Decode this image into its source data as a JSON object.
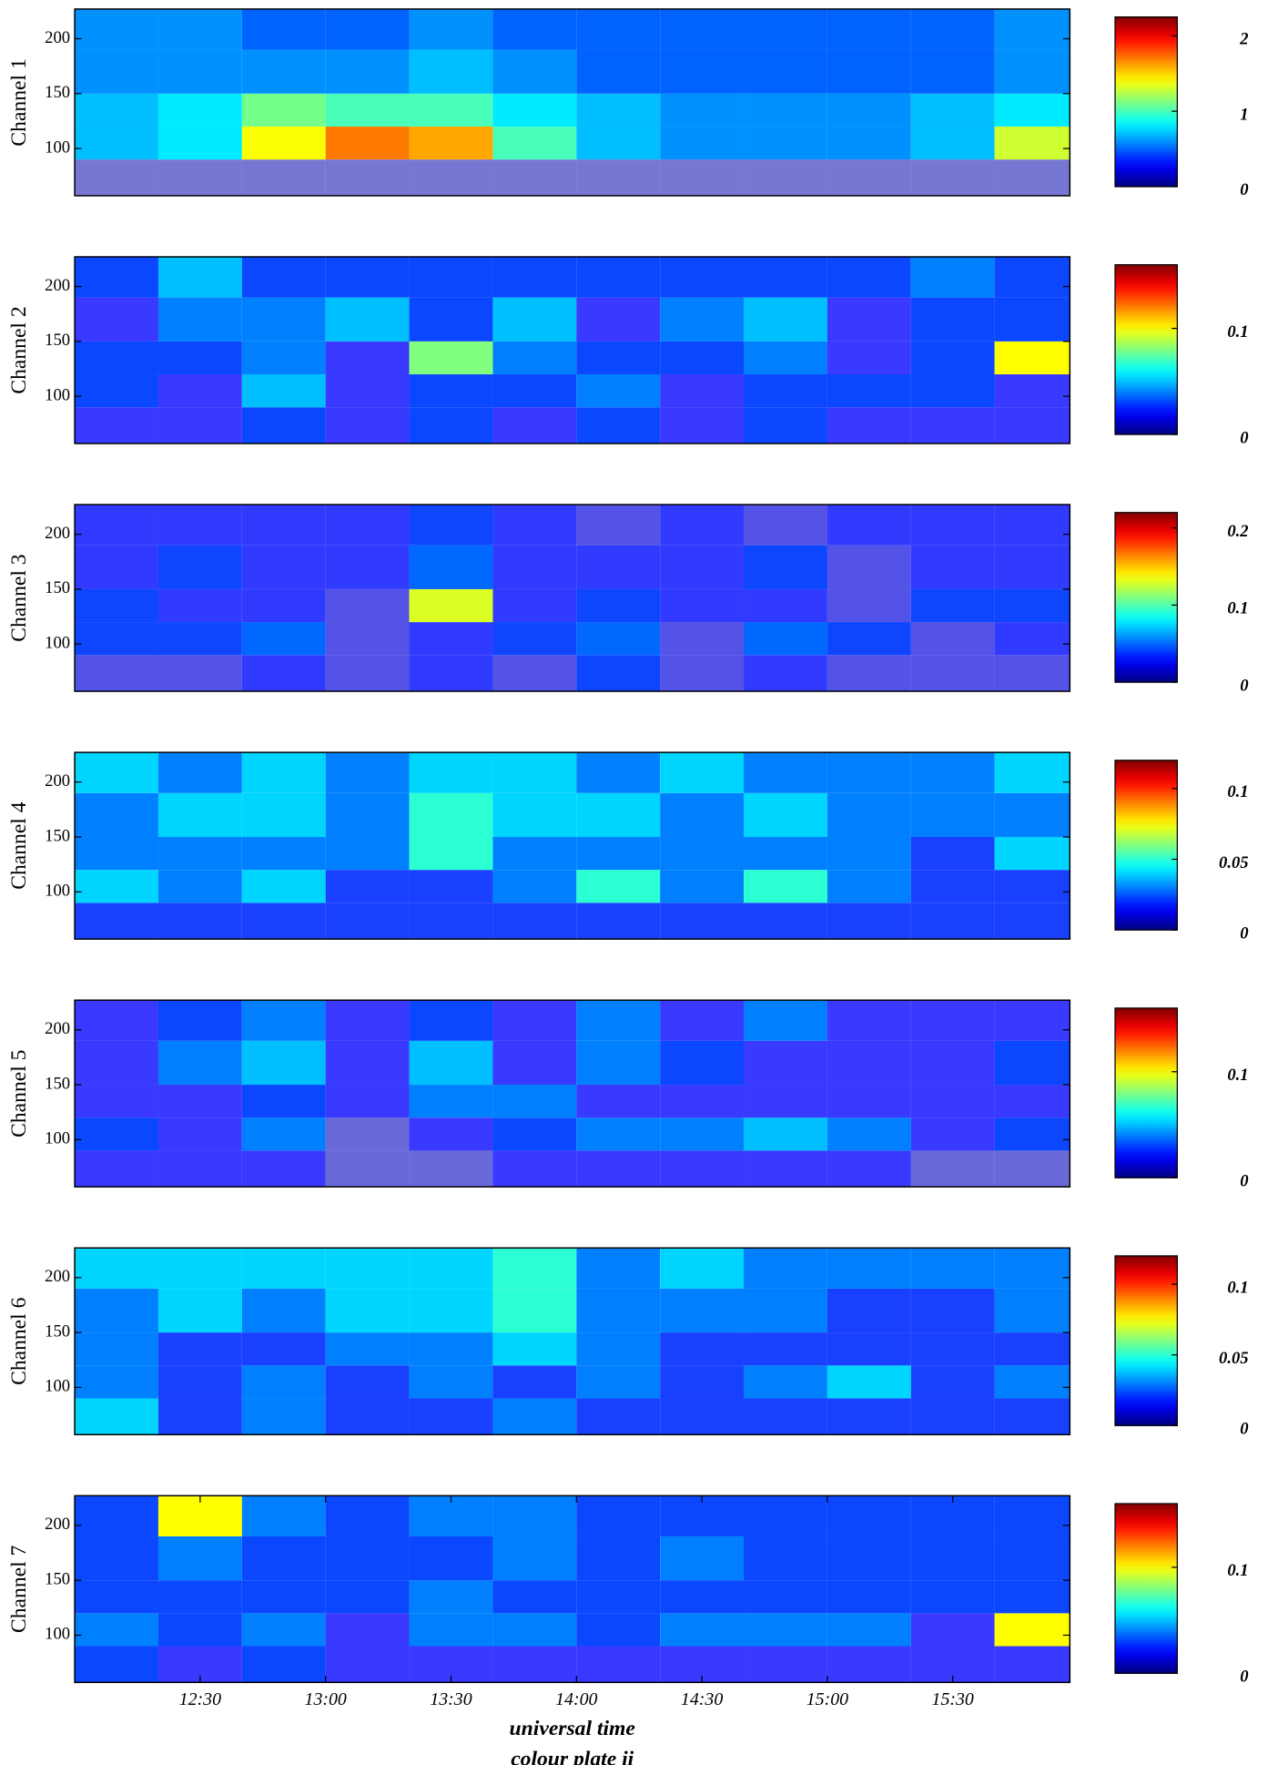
{
  "chart_data": [
    {
      "type": "heatmap",
      "ylabel": "Channel 1",
      "xlim": [
        720,
        958
      ],
      "ylim": [
        57,
        227
      ],
      "yticks": [
        100,
        150,
        200
      ],
      "xbins": [
        720,
        740,
        760,
        780,
        800,
        820,
        840,
        860,
        880,
        900,
        920,
        940,
        958
      ],
      "ybins": [
        57,
        90,
        120,
        150,
        190,
        227
      ],
      "z": [
        [
          0.1,
          0.1,
          0.1,
          0.1,
          0.1,
          0.1,
          0.1,
          0.1,
          0.1,
          0.1,
          0.1,
          0.1
        ],
        [
          0.7,
          0.8,
          1.4,
          1.7,
          1.6,
          1.0,
          0.7,
          0.6,
          0.6,
          0.6,
          0.7,
          1.3
        ],
        [
          0.7,
          0.8,
          1.1,
          1.0,
          1.0,
          0.8,
          0.7,
          0.6,
          0.6,
          0.6,
          0.7,
          0.8
        ],
        [
          0.6,
          0.6,
          0.6,
          0.6,
          0.7,
          0.6,
          0.5,
          0.5,
          0.5,
          0.5,
          0.5,
          0.6
        ],
        [
          0.6,
          0.6,
          0.5,
          0.5,
          0.6,
          0.5,
          0.5,
          0.5,
          0.5,
          0.5,
          0.5,
          0.6
        ]
      ],
      "colorbar": {
        "clim": [
          0,
          2.25
        ],
        "ticks": [
          0,
          1,
          2
        ]
      }
    },
    {
      "type": "heatmap",
      "ylabel": "Channel 2",
      "xlim": [
        720,
        958
      ],
      "ylim": [
        57,
        227
      ],
      "yticks": [
        100,
        150,
        200
      ],
      "xbins": [
        720,
        740,
        760,
        780,
        800,
        820,
        840,
        860,
        880,
        900,
        920,
        940,
        958
      ],
      "ybins": [
        57,
        90,
        120,
        150,
        190,
        227
      ],
      "z": [
        [
          0.02,
          0.02,
          0.03,
          0.02,
          0.03,
          0.02,
          0.03,
          0.02,
          0.03,
          0.02,
          0.02,
          0.02
        ],
        [
          0.03,
          0.02,
          0.05,
          0.02,
          0.03,
          0.03,
          0.04,
          0.02,
          0.03,
          0.03,
          0.03,
          0.02
        ],
        [
          0.03,
          0.03,
          0.04,
          0.02,
          0.08,
          0.04,
          0.03,
          0.03,
          0.04,
          0.02,
          0.03,
          0.1
        ],
        [
          0.02,
          0.04,
          0.04,
          0.05,
          0.03,
          0.05,
          0.02,
          0.04,
          0.05,
          0.02,
          0.03,
          0.03
        ],
        [
          0.03,
          0.05,
          0.03,
          0.03,
          0.03,
          0.03,
          0.03,
          0.03,
          0.03,
          0.03,
          0.04,
          0.03
        ]
      ],
      "colorbar": {
        "clim": [
          0,
          0.16
        ],
        "ticks": [
          0,
          0.1
        ]
      }
    },
    {
      "type": "heatmap",
      "ylabel": "Channel 3",
      "xlim": [
        720,
        958
      ],
      "ylim": [
        57,
        227
      ],
      "yticks": [
        100,
        150,
        200
      ],
      "xbins": [
        720,
        740,
        760,
        780,
        800,
        820,
        840,
        860,
        880,
        900,
        920,
        940,
        958
      ],
      "ybins": [
        57,
        90,
        120,
        150,
        190,
        227
      ],
      "z": [
        [
          0.02,
          0.02,
          0.03,
          0.02,
          0.03,
          0.02,
          0.04,
          0.02,
          0.03,
          0.02,
          0.02,
          0.02
        ],
        [
          0.04,
          0.04,
          0.05,
          0.02,
          0.03,
          0.04,
          0.05,
          0.02,
          0.05,
          0.04,
          0.02,
          0.03
        ],
        [
          0.04,
          0.03,
          0.03,
          0.02,
          0.13,
          0.03,
          0.04,
          0.03,
          0.03,
          0.02,
          0.04,
          0.04
        ],
        [
          0.03,
          0.04,
          0.03,
          0.03,
          0.05,
          0.03,
          0.03,
          0.03,
          0.04,
          0.02,
          0.03,
          0.03
        ],
        [
          0.03,
          0.03,
          0.03,
          0.03,
          0.04,
          0.03,
          0.02,
          0.03,
          0.02,
          0.03,
          0.03,
          0.03
        ]
      ],
      "colorbar": {
        "clim": [
          0,
          0.22
        ],
        "ticks": [
          0,
          0.1,
          0.2
        ]
      }
    },
    {
      "type": "heatmap",
      "ylabel": "Channel 4",
      "xlim": [
        720,
        958
      ],
      "ylim": [
        57,
        227
      ],
      "yticks": [
        100,
        150,
        200
      ],
      "xbins": [
        720,
        740,
        760,
        780,
        800,
        820,
        840,
        860,
        880,
        900,
        920,
        940,
        958
      ],
      "ybins": [
        57,
        90,
        120,
        150,
        190,
        227
      ],
      "z": [
        [
          0.02,
          0.02,
          0.02,
          0.02,
          0.02,
          0.02,
          0.02,
          0.02,
          0.02,
          0.02,
          0.02,
          0.02
        ],
        [
          0.04,
          0.03,
          0.04,
          0.02,
          0.02,
          0.03,
          0.05,
          0.03,
          0.05,
          0.03,
          0.02,
          0.02
        ],
        [
          0.03,
          0.03,
          0.03,
          0.03,
          0.05,
          0.03,
          0.03,
          0.03,
          0.03,
          0.03,
          0.02,
          0.04
        ],
        [
          0.03,
          0.04,
          0.04,
          0.03,
          0.05,
          0.04,
          0.04,
          0.03,
          0.04,
          0.03,
          0.03,
          0.03
        ],
        [
          0.04,
          0.03,
          0.04,
          0.03,
          0.04,
          0.04,
          0.03,
          0.04,
          0.03,
          0.03,
          0.03,
          0.04
        ]
      ],
      "colorbar": {
        "clim": [
          0,
          0.12
        ],
        "ticks": [
          0,
          0.05,
          0.1
        ]
      }
    },
    {
      "type": "heatmap",
      "ylabel": "Channel 5",
      "xlim": [
        720,
        958
      ],
      "ylim": [
        57,
        227
      ],
      "yticks": [
        100,
        150,
        200
      ],
      "xbins": [
        720,
        740,
        760,
        780,
        800,
        820,
        840,
        860,
        880,
        900,
        920,
        940,
        958
      ],
      "ybins": [
        57,
        90,
        120,
        150,
        190,
        227
      ],
      "z": [
        [
          0.02,
          0.02,
          0.02,
          0.01,
          0.01,
          0.02,
          0.02,
          0.02,
          0.02,
          0.02,
          0.01,
          0.01
        ],
        [
          0.03,
          0.02,
          0.04,
          0.01,
          0.02,
          0.03,
          0.04,
          0.04,
          0.05,
          0.04,
          0.02,
          0.03
        ],
        [
          0.02,
          0.02,
          0.03,
          0.02,
          0.04,
          0.04,
          0.02,
          0.02,
          0.02,
          0.02,
          0.02,
          0.02
        ],
        [
          0.02,
          0.04,
          0.05,
          0.02,
          0.05,
          0.02,
          0.04,
          0.03,
          0.02,
          0.02,
          0.02,
          0.03
        ],
        [
          0.02,
          0.03,
          0.04,
          0.02,
          0.03,
          0.02,
          0.04,
          0.02,
          0.04,
          0.02,
          0.02,
          0.02
        ]
      ],
      "colorbar": {
        "clim": [
          0,
          0.16
        ],
        "ticks": [
          0,
          0.1
        ]
      }
    },
    {
      "type": "heatmap",
      "ylabel": "Channel 6",
      "xlim": [
        720,
        958
      ],
      "ylim": [
        57,
        227
      ],
      "yticks": [
        100,
        150,
        200
      ],
      "xbins": [
        720,
        740,
        760,
        780,
        800,
        820,
        840,
        860,
        880,
        900,
        920,
        940,
        958
      ],
      "ybins": [
        57,
        90,
        120,
        150,
        190,
        227
      ],
      "z": [
        [
          0.04,
          0.02,
          0.03,
          0.02,
          0.02,
          0.03,
          0.02,
          0.02,
          0.02,
          0.02,
          0.02,
          0.02
        ],
        [
          0.03,
          0.02,
          0.03,
          0.02,
          0.03,
          0.02,
          0.03,
          0.02,
          0.03,
          0.04,
          0.02,
          0.03
        ],
        [
          0.03,
          0.02,
          0.02,
          0.03,
          0.03,
          0.04,
          0.03,
          0.02,
          0.02,
          0.02,
          0.02,
          0.02
        ],
        [
          0.03,
          0.04,
          0.03,
          0.04,
          0.04,
          0.05,
          0.03,
          0.03,
          0.03,
          0.02,
          0.02,
          0.03
        ],
        [
          0.04,
          0.04,
          0.04,
          0.04,
          0.04,
          0.05,
          0.03,
          0.04,
          0.03,
          0.03,
          0.03,
          0.03
        ]
      ],
      "colorbar": {
        "clim": [
          0,
          0.12
        ],
        "ticks": [
          0,
          0.05,
          0.1
        ]
      }
    },
    {
      "type": "heatmap",
      "ylabel": "Channel 7",
      "xlim": [
        720,
        958
      ],
      "ylim": [
        57,
        227
      ],
      "yticks": [
        100,
        150,
        200
      ],
      "xbins": [
        720,
        740,
        760,
        780,
        800,
        820,
        840,
        860,
        880,
        900,
        920,
        940,
        958
      ],
      "ybins": [
        57,
        90,
        120,
        150,
        190,
        227
      ],
      "z": [
        [
          0.03,
          0.02,
          0.03,
          0.02,
          0.02,
          0.02,
          0.02,
          0.02,
          0.02,
          0.02,
          0.02,
          0.02
        ],
        [
          0.04,
          0.03,
          0.04,
          0.02,
          0.04,
          0.04,
          0.03,
          0.04,
          0.04,
          0.04,
          0.02,
          0.1
        ],
        [
          0.03,
          0.03,
          0.03,
          0.03,
          0.04,
          0.03,
          0.03,
          0.03,
          0.03,
          0.03,
          0.03,
          0.03
        ],
        [
          0.03,
          0.04,
          0.03,
          0.03,
          0.03,
          0.04,
          0.03,
          0.04,
          0.03,
          0.03,
          0.03,
          0.03
        ],
        [
          0.03,
          0.1,
          0.04,
          0.03,
          0.04,
          0.04,
          0.03,
          0.03,
          0.03,
          0.03,
          0.03,
          0.03
        ]
      ],
      "colorbar": {
        "clim": [
          0,
          0.16
        ],
        "ticks": [
          0,
          0.1
        ]
      },
      "xticks": [
        {
          "value": 750,
          "label": "12:30"
        },
        {
          "value": 780,
          "label": "13:00"
        },
        {
          "value": 810,
          "label": "13:30"
        },
        {
          "value": 840,
          "label": "14:00"
        },
        {
          "value": 870,
          "label": "14:30"
        },
        {
          "value": 900,
          "label": "15:00"
        },
        {
          "value": 930,
          "label": "15:30"
        }
      ],
      "xlabel": "universal time"
    }
  ],
  "caption": "colour plate ii"
}
